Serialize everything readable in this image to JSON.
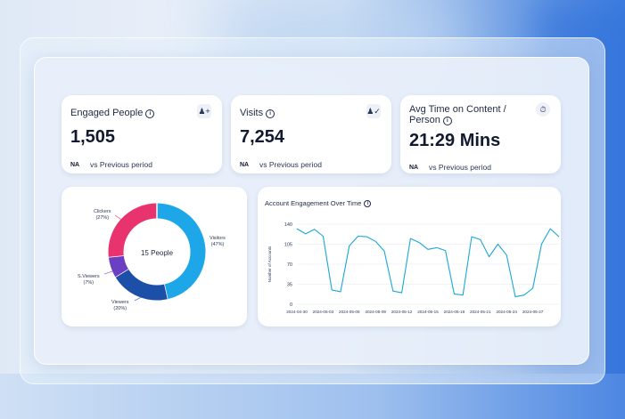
{
  "kpis": [
    {
      "title": "Engaged People",
      "value": "1,505",
      "na": "NA",
      "compare": "vs Previous period",
      "icon": "add-person-icon"
    },
    {
      "title": "Visits",
      "value": "7,254",
      "na": "NA",
      "compare": "vs Previous period",
      "icon": "person-check-icon"
    },
    {
      "title_line1": "Avg Time on Content /",
      "title_line2": "Person",
      "value": "21:29 Mins",
      "na": "NA",
      "compare": "vs Previous period",
      "icon": "timer-icon"
    }
  ],
  "donut": {
    "center_label": "15 People",
    "segments": [
      {
        "name": "Visitors",
        "pct_label": "(47%)",
        "value": 47,
        "color": "#1ea7e8"
      },
      {
        "name": "Viewers",
        "pct_label": "(20%)",
        "value": 20,
        "color": "#1c4fa8"
      },
      {
        "name": "S.Viewers",
        "pct_label": "(7%)",
        "value": 7,
        "color": "#6a3fc2"
      },
      {
        "name": "Clickers",
        "pct_label": "(27%)",
        "value": 27,
        "color": "#e8336e"
      }
    ]
  },
  "chart_data": {
    "type": "line",
    "title": "Account Engagement Over Time",
    "ylabel": "Number of Accounts",
    "ylim": [
      0,
      140
    ],
    "yticks": [
      140,
      105,
      70,
      35,
      0
    ],
    "xticks": [
      "2024-04-30",
      "2024-05-03",
      "2024-05-06",
      "2024-05-09",
      "2024-05-12",
      "2024-05-15",
      "2024-05-18",
      "2024-05-21",
      "2024-05-24",
      "2024-05-27"
    ],
    "series": [
      {
        "values": [
          132,
          123,
          131,
          119,
          25,
          22,
          102,
          119,
          118,
          110,
          93,
          23,
          20,
          115,
          108,
          96,
          99,
          94,
          18,
          16,
          118,
          113,
          83,
          105,
          86,
          13,
          16,
          28,
          105,
          132,
          118
        ]
      }
    ],
    "color": "#1aa7d6"
  }
}
